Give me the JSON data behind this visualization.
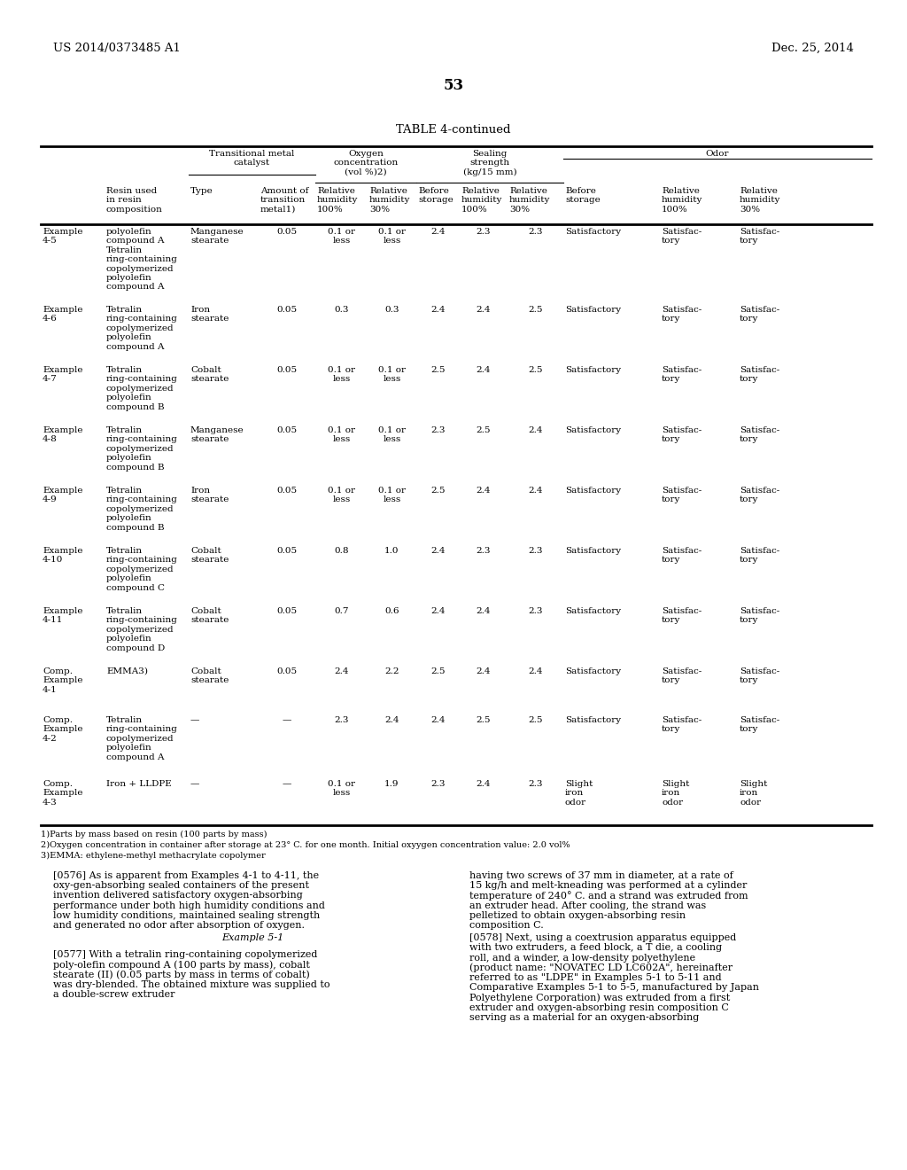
{
  "title_left": "US 2014/0373485 A1",
  "title_right": "Dec. 25, 2014",
  "page_number": "53",
  "table_title": "TABLE 4-continued",
  "background_color": "#ffffff",
  "rows": [
    {
      "example": "Example\n4-5",
      "resin": "polyolefin\ncompound A\nTetralin\nring-containing\ncopolymerized\npolyolefin\ncompound A",
      "type": "Manganese\nstearate",
      "amount": "0.05",
      "rh100_oxy": "0.1 or\nless",
      "rh30_oxy": "0.1 or\nless",
      "before_seal": "2.4",
      "rh100_seal": "2.3",
      "rh30_seal": "2.3",
      "before_odor": "Satisfactory",
      "rh100_odor": "Satisfac-\ntory",
      "rh30_odor": "Satisfac-\ntory"
    },
    {
      "example": "Example\n4-6",
      "resin": "Tetralin\nring-containing\ncopolymerized\npolyolefin\ncompound A",
      "type": "Iron\nstearate",
      "amount": "0.05",
      "rh100_oxy": "0.3",
      "rh30_oxy": "0.3",
      "before_seal": "2.4",
      "rh100_seal": "2.4",
      "rh30_seal": "2.5",
      "before_odor": "Satisfactory",
      "rh100_odor": "Satisfac-\ntory",
      "rh30_odor": "Satisfac-\ntory"
    },
    {
      "example": "Example\n4-7",
      "resin": "Tetralin\nring-containing\ncopolymerized\npolyolefin\ncompound B",
      "type": "Cobalt\nstearate",
      "amount": "0.05",
      "rh100_oxy": "0.1 or\nless",
      "rh30_oxy": "0.1 or\nless",
      "before_seal": "2.5",
      "rh100_seal": "2.4",
      "rh30_seal": "2.5",
      "before_odor": "Satisfactory",
      "rh100_odor": "Satisfac-\ntory",
      "rh30_odor": "Satisfac-\ntory"
    },
    {
      "example": "Example\n4-8",
      "resin": "Tetralin\nring-containing\ncopolymerized\npolyolefin\ncompound B",
      "type": "Manganese\nstearate",
      "amount": "0.05",
      "rh100_oxy": "0.1 or\nless",
      "rh30_oxy": "0.1 or\nless",
      "before_seal": "2.3",
      "rh100_seal": "2.5",
      "rh30_seal": "2.4",
      "before_odor": "Satisfactory",
      "rh100_odor": "Satisfac-\ntory",
      "rh30_odor": "Satisfac-\ntory"
    },
    {
      "example": "Example\n4-9",
      "resin": "Tetralin\nring-containing\ncopolymerized\npolyolefin\ncompound B",
      "type": "Iron\nstearate",
      "amount": "0.05",
      "rh100_oxy": "0.1 or\nless",
      "rh30_oxy": "0.1 or\nless",
      "before_seal": "2.5",
      "rh100_seal": "2.4",
      "rh30_seal": "2.4",
      "before_odor": "Satisfactory",
      "rh100_odor": "Satisfac-\ntory",
      "rh30_odor": "Satisfac-\ntory"
    },
    {
      "example": "Example\n4-10",
      "resin": "Tetralin\nring-containing\ncopolymerized\npolyolefin\ncompound C",
      "type": "Cobalt\nstearate",
      "amount": "0.05",
      "rh100_oxy": "0.8",
      "rh30_oxy": "1.0",
      "before_seal": "2.4",
      "rh100_seal": "2.3",
      "rh30_seal": "2.3",
      "before_odor": "Satisfactory",
      "rh100_odor": "Satisfac-\ntory",
      "rh30_odor": "Satisfac-\ntory"
    },
    {
      "example": "Example\n4-11",
      "resin": "Tetralin\nring-containing\ncopolymerized\npolyolefin\ncompound D",
      "type": "Cobalt\nstearate",
      "amount": "0.05",
      "rh100_oxy": "0.7",
      "rh30_oxy": "0.6",
      "before_seal": "2.4",
      "rh100_seal": "2.4",
      "rh30_seal": "2.3",
      "before_odor": "Satisfactory",
      "rh100_odor": "Satisfac-\ntory",
      "rh30_odor": "Satisfac-\ntory"
    },
    {
      "example": "Comp.\nExample\n4-1",
      "resin": "EMMA3)",
      "type": "Cobalt\nstearate",
      "amount": "0.05",
      "rh100_oxy": "2.4",
      "rh30_oxy": "2.2",
      "before_seal": "2.5",
      "rh100_seal": "2.4",
      "rh30_seal": "2.4",
      "before_odor": "Satisfactory",
      "rh100_odor": "Satisfac-\ntory",
      "rh30_odor": "Satisfac-\ntory"
    },
    {
      "example": "Comp.\nExample\n4-2",
      "resin": "Tetralin\nring-containing\ncopolymerized\npolyolefin\ncompound A",
      "type": "—",
      "amount": "—",
      "rh100_oxy": "2.3",
      "rh30_oxy": "2.4",
      "before_seal": "2.4",
      "rh100_seal": "2.5",
      "rh30_seal": "2.5",
      "before_odor": "Satisfactory",
      "rh100_odor": "Satisfac-\ntory",
      "rh30_odor": "Satisfac-\ntory"
    },
    {
      "example": "Comp.\nExample\n4-3",
      "resin": "Iron + LLDPE",
      "type": "—",
      "amount": "—",
      "rh100_oxy": "0.1 or\nless",
      "rh30_oxy": "1.9",
      "before_seal": "2.3",
      "rh100_seal": "2.4",
      "rh30_seal": "2.3",
      "before_odor": "Slight\niron\nodor",
      "rh100_odor": "Slight\niron\nodor",
      "rh30_odor": "Slight\niron\nodor"
    }
  ],
  "footnotes": [
    "1)Parts by mass based on resin (100 parts by mass)",
    "2)Oxygen concentration in container after storage at 23° C. for one month. Initial oxyygen concentration value: 2.0 vol%",
    "3)EMMA: ethylene-methyl methacrylate copolymer"
  ],
  "body_left_paras": [
    {
      "tag": "[0576]",
      "indent": true,
      "text": "As is apparent from Examples 4-1 to 4-11, the oxy-gen-absorbing sealed containers of the present invention delivered satisfactory oxygen-absorbing performance under both high humidity conditions and low humidity conditions, maintained sealing strength and generated no odor after absorption of oxygen."
    },
    {
      "tag": "",
      "indent": false,
      "text": "Example 5-1",
      "center": true
    },
    {
      "tag": "[0577]",
      "indent": true,
      "text": "With a tetralin ring-containing copolymerized poly-olefin compound A (100 parts by mass), cobalt stearate (II) (0.05 parts by mass in terms of cobalt) was dry-blended. The obtained mixture was supplied to a double-screw extruder"
    }
  ],
  "body_right_paras": [
    {
      "tag": "",
      "indent": false,
      "text": "having two screws of 37 mm in diameter, at a rate of 15 kg/h and melt-kneading was performed at a cylinder temperature of 240° C. and a strand was extruded from an extruder head. After cooling, the strand was pelletized to obtain oxygen-absorbing resin composition C."
    },
    {
      "tag": "[0578]",
      "indent": true,
      "text": "Next, using a coextrusion apparatus equipped with two extruders, a feed block, a T die, a cooling roll, and a winder, a low-density polyethylene (product name: \"NOVATEC LD LC602A\", hereinafter referred to as \"LDPE\" in Examples 5-1 to 5-11 and Comparative Examples 5-1 to 5-5, manufactured by Japan Polyethylene Corporation) was extruded from a first extruder and oxygen-absorbing resin composition C serving as a material for an oxygen-absorbing"
    }
  ]
}
